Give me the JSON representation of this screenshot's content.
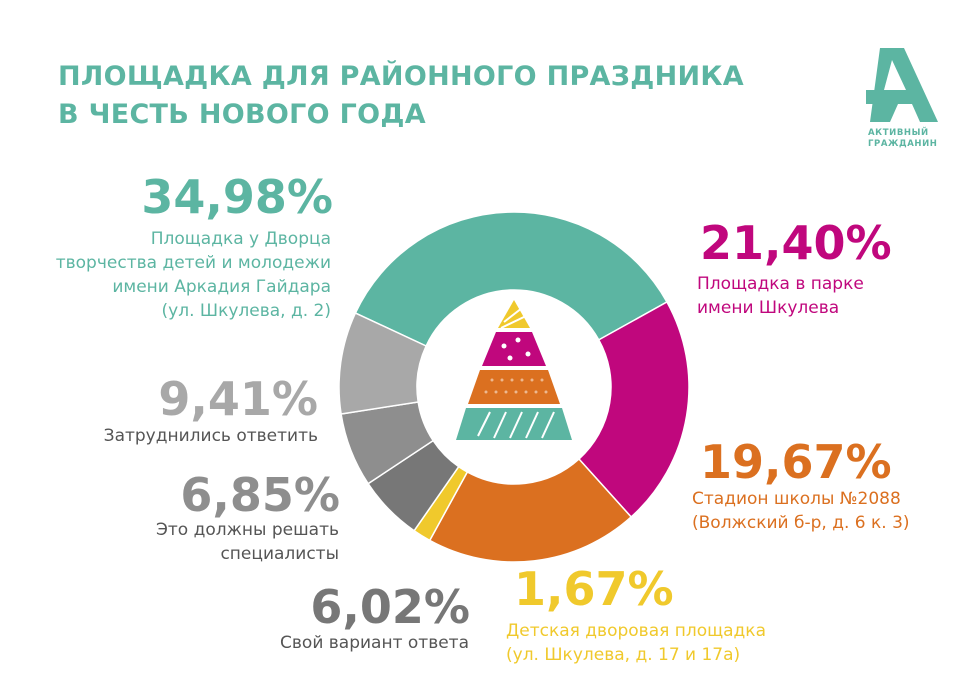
{
  "title_lines": [
    "ПЛОЩАДКА ДЛЯ РАЙОННОГО ПРАЗДНИКА",
    "В ЧЕСТЬ НОВОГО ГОДА"
  ],
  "logo": {
    "line1": "АКТИВНЫЙ",
    "line2": "ГРАЖДАНИН"
  },
  "colors": {
    "teal": "#5cb5a2",
    "magenta": "#c0077d",
    "orange": "#db7020",
    "yellow": "#f0c92c",
    "grey_light": "#a8a8a8",
    "grey_mid": "#8e8e8e",
    "grey_dark": "#777777"
  },
  "chart_data": {
    "type": "pie",
    "title": "ПЛОЩАДКА ДЛЯ РАЙОННОГО ПРАЗДНИКА В ЧЕСТЬ НОВОГО ГОДА",
    "slices": [
      {
        "value_label": "34,98%",
        "value": 34.98,
        "label_lines": [
          "Площадка у Дворца",
          "творчества детей и молодежи",
          "имени Аркадия Гайдара",
          "(ул. Шкулева, д. 2)"
        ],
        "color": "#5cb5a2"
      },
      {
        "value_label": "21,40%",
        "value": 21.4,
        "label_lines": [
          "Площадка в парке",
          "имени Шкулева"
        ],
        "color": "#c0077d"
      },
      {
        "value_label": "19,67%",
        "value": 19.67,
        "label_lines": [
          "Стадион школы №2088",
          "(Волжский б-р, д. 6 к. 3)"
        ],
        "color": "#db7020"
      },
      {
        "value_label": "1,67%",
        "value": 1.67,
        "label_lines": [
          "Детская дворовая площадка",
          "(ул. Шкулева, д. 17 и 17а)"
        ],
        "color": "#f0c92c"
      },
      {
        "value_label": "6,02%",
        "value": 6.02,
        "label_lines": [
          "Свой вариант ответа"
        ],
        "color": "#777777"
      },
      {
        "value_label": "6,85%",
        "value": 6.85,
        "label_lines": [
          "Это должны решать",
          "специалисты"
        ],
        "color": "#8e8e8e"
      },
      {
        "value_label": "9,41%",
        "value": 9.41,
        "label_lines": [
          "Затруднились ответить"
        ],
        "color": "#a8a8a8"
      }
    ]
  }
}
